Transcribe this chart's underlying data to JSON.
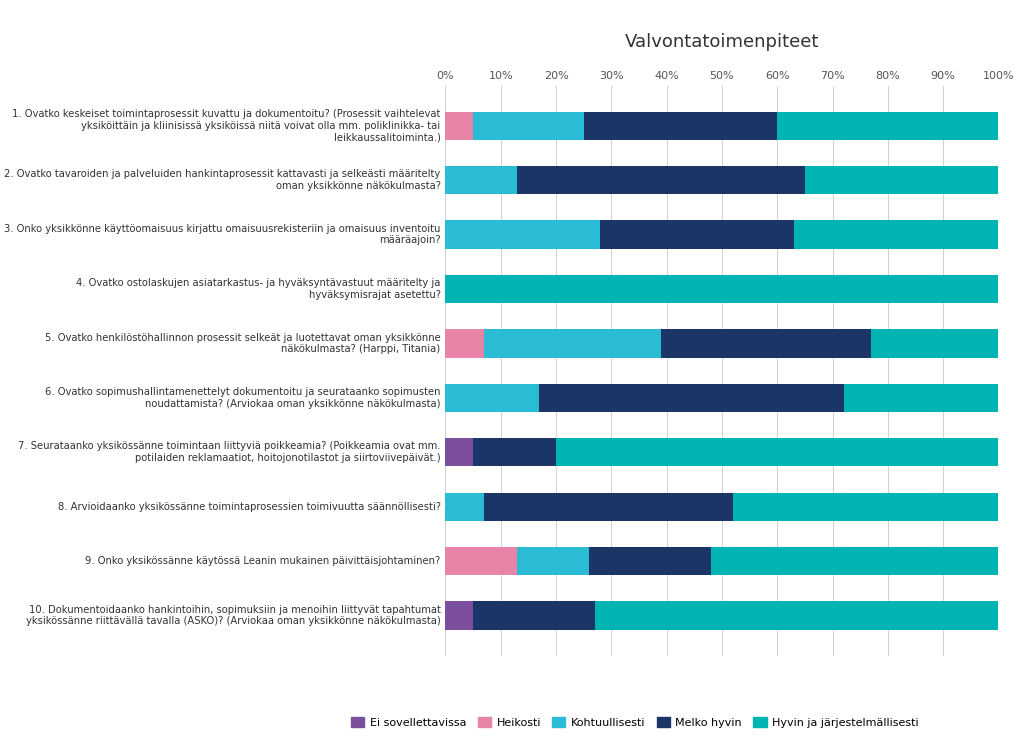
{
  "title": "Valvontatoimenpiteet",
  "categories": [
    "1. Ovatko keskeiset toimintaprosessit kuvattu ja dokumentoitu? (Prosessit vaihtelevat\nyksiköittäin ja kliinisissä yksiköissä niitä voivat olla mm. poliklinikka- tai\nleikkaussalitoiminta.)",
    "2. Ovatko tavaroiden ja palveluiden hankintaprosessit kattavasti ja selkeästi määritelty\noman yksikkönne näkökulmasta?",
    "3. Onko yksikkönne käyttöomaisuus kirjattu omaisuusrekisteriin ja omaisuus inventoitu\nmääräajoin?",
    "4. Ovatko ostolaskujen asiatarkastus- ja hyväksyntävastuut määritelty ja\nhyväksymisrajat asetettu?",
    "5. Ovatko henkilöstöhallinnon prosessit selkeät ja luotettavat oman yksikkönne\nnäkökulmasta? (Harppi, Titania)",
    "6. Ovatko sopimushallintamenettelyt dokumentoitu ja seurataanko sopimusten\nnoudattamista? (Arviokaa oman yksikkönne näkökulmasta)",
    "7. Seurataanko yksikössänne toimintaan liittyviä poikkeamia? (Poikkeamia ovat mm.\npotilaiden reklamaatiot, hoitojonotilastot ja siirtoviivepäivät.)",
    "8. Arvioidaanko yksikössänne toimintaprosessien toimivuutta säännöllisesti?",
    "9. Onko yksikössänne käytössä Leanin mukainen päivittäisjohtaminen?",
    "10. Dokumentoidaanko hankintoihin, sopimuksiin ja menoihin liittyvät tapahtumat\nyksikössänne riittävällä tavalla (ASKO)? (Arviokaa oman yksikkönne näkökulmasta)"
  ],
  "series": {
    "Ei sovellettavissa": [
      0,
      0,
      0,
      0,
      0,
      0,
      5,
      0,
      0,
      5
    ],
    "Heikosti": [
      5,
      0,
      0,
      0,
      7,
      0,
      0,
      0,
      13,
      0
    ],
    "Kohtuullisesti": [
      20,
      13,
      28,
      0,
      32,
      17,
      0,
      7,
      13,
      0
    ],
    "Melko hyvin": [
      35,
      52,
      35,
      0,
      38,
      55,
      15,
      45,
      22,
      22
    ],
    "Hyvin ja järjestelmällisesti": [
      40,
      35,
      37,
      100,
      23,
      28,
      80,
      48,
      52,
      73
    ]
  },
  "colors": {
    "Ei sovellettavissa": "#7b4f9e",
    "Heikosti": "#e884a8",
    "Kohtuullisesti": "#29bcd4",
    "Melko hyvin": "#1b3566",
    "Hyvin ja järjestelmällisesti": "#00b4b4"
  },
  "background_color": "#ffffff",
  "bar_height": 0.52,
  "xlim": [
    0,
    100
  ],
  "xticks": [
    0,
    10,
    20,
    30,
    40,
    50,
    60,
    70,
    80,
    90,
    100
  ]
}
